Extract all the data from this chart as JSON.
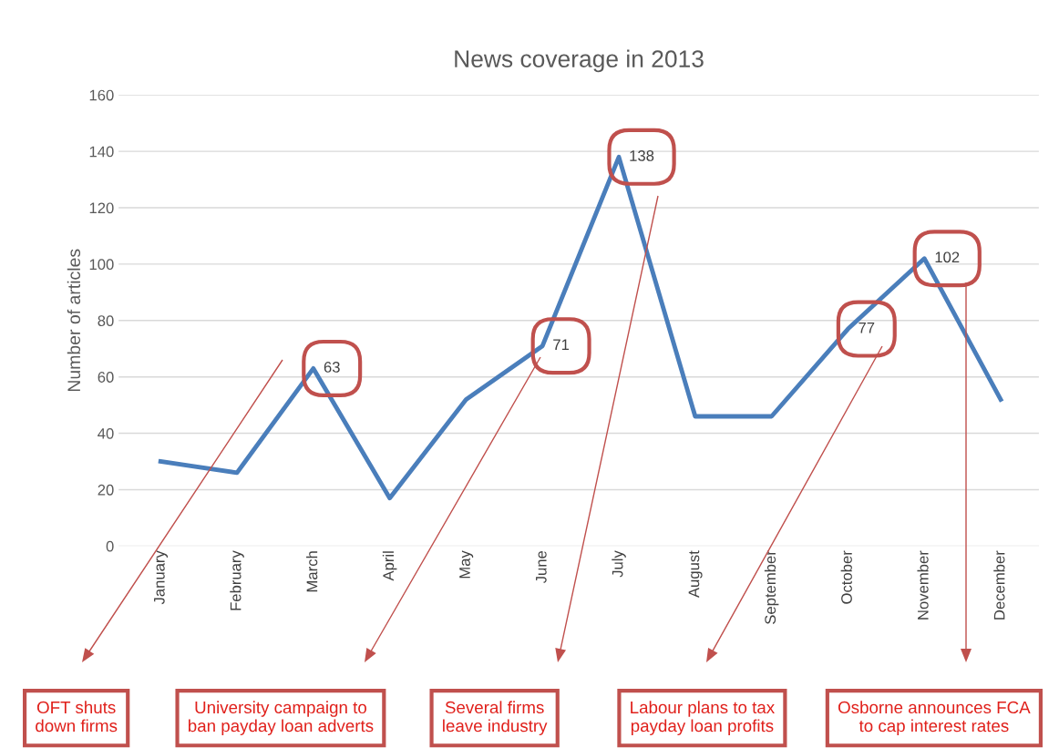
{
  "chart_data": {
    "type": "line",
    "title": "News coverage in 2013",
    "ylabel": "Number of articles",
    "categories": [
      "January",
      "February",
      "March",
      "April",
      "May",
      "June",
      "July",
      "August",
      "September",
      "October",
      "November",
      "December"
    ],
    "series": [
      {
        "color": "#4a7ebb",
        "values": [
          30,
          26,
          63,
          17,
          52,
          71,
          138,
          46,
          46,
          77,
          102,
          52
        ],
        "value_labels": [
          null,
          null,
          "63",
          null,
          null,
          "71",
          "138",
          null,
          null,
          "77",
          "102",
          null
        ]
      }
    ],
    "ylim": [
      0,
      160
    ],
    "yticks": [
      0,
      20,
      40,
      60,
      80,
      100,
      120,
      140,
      160
    ],
    "grid": "y",
    "marker": "none",
    "line_style": "solid",
    "legend": false,
    "annotations": [
      "OFT shuts\ndown firms",
      "University campaign to\nban payday loan adverts",
      "Several firms\nleave industry",
      "Labour plans to tax\npayday loan profits",
      "Osborne announces FCA\nto cap interest rates"
    ]
  }
}
